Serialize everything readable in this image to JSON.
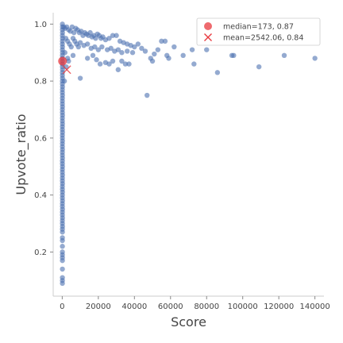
{
  "chart_data": {
    "type": "scatter",
    "xlabel": "Score",
    "ylabel": "Upvote_ratio",
    "xlim": [
      -5000,
      145000
    ],
    "ylim": [
      0.045,
      1.04
    ],
    "xticks": [
      0,
      20000,
      40000,
      60000,
      80000,
      100000,
      120000,
      140000
    ],
    "xtick_labels": [
      "0",
      "20000",
      "40000",
      "60000",
      "80000",
      "100000",
      "120000",
      "140000"
    ],
    "yticks": [
      0.2,
      0.4,
      0.6,
      0.8,
      1.0
    ],
    "ytick_labels": [
      "0.2",
      "0.4",
      "0.6",
      "0.8",
      "1.0"
    ],
    "grid": false,
    "legend_position": "top-right",
    "colors": {
      "points": "#4c72b0",
      "median": "#e8383d",
      "mean": "#e8383d"
    },
    "legend": [
      {
        "label": "median=173, 0.87",
        "marker": "circle"
      },
      {
        "label": "mean=2542.06, 0.84",
        "marker": "x"
      }
    ],
    "median": {
      "x": 173,
      "y": 0.87
    },
    "mean": {
      "x": 2542.06,
      "y": 0.84
    },
    "series": [
      {
        "points": [
          [
            100,
            1.0
          ],
          [
            100,
            0.99
          ],
          [
            100,
            0.98
          ],
          [
            150,
            0.97
          ],
          [
            100,
            0.96
          ],
          [
            150,
            0.95
          ],
          [
            100,
            0.94
          ],
          [
            100,
            0.93
          ],
          [
            150,
            0.92
          ],
          [
            100,
            0.91
          ],
          [
            150,
            0.9
          ],
          [
            100,
            0.89
          ],
          [
            100,
            0.88
          ],
          [
            150,
            0.87
          ],
          [
            100,
            0.86
          ],
          [
            100,
            0.85
          ],
          [
            150,
            0.84
          ],
          [
            100,
            0.83
          ],
          [
            100,
            0.82
          ],
          [
            150,
            0.81
          ],
          [
            100,
            0.8
          ],
          [
            100,
            0.79
          ],
          [
            150,
            0.78
          ],
          [
            100,
            0.77
          ],
          [
            100,
            0.76
          ],
          [
            150,
            0.75
          ],
          [
            100,
            0.74
          ],
          [
            100,
            0.73
          ],
          [
            100,
            0.72
          ],
          [
            150,
            0.71
          ],
          [
            100,
            0.7
          ],
          [
            100,
            0.69
          ],
          [
            150,
            0.68
          ],
          [
            100,
            0.67
          ],
          [
            100,
            0.66
          ],
          [
            150,
            0.65
          ],
          [
            100,
            0.64
          ],
          [
            100,
            0.63
          ],
          [
            150,
            0.62
          ],
          [
            100,
            0.61
          ],
          [
            100,
            0.6
          ],
          [
            150,
            0.59
          ],
          [
            100,
            0.58
          ],
          [
            100,
            0.57
          ],
          [
            150,
            0.56
          ],
          [
            100,
            0.55
          ],
          [
            100,
            0.54
          ],
          [
            150,
            0.53
          ],
          [
            100,
            0.52
          ],
          [
            100,
            0.51
          ],
          [
            150,
            0.5
          ],
          [
            100,
            0.49
          ],
          [
            100,
            0.48
          ],
          [
            150,
            0.47
          ],
          [
            100,
            0.46
          ],
          [
            100,
            0.45
          ],
          [
            150,
            0.44
          ],
          [
            100,
            0.43
          ],
          [
            100,
            0.42
          ],
          [
            150,
            0.41
          ],
          [
            100,
            0.4
          ],
          [
            100,
            0.39
          ],
          [
            150,
            0.38
          ],
          [
            100,
            0.37
          ],
          [
            100,
            0.36
          ],
          [
            150,
            0.35
          ],
          [
            100,
            0.34
          ],
          [
            100,
            0.33
          ],
          [
            150,
            0.32
          ],
          [
            100,
            0.31
          ],
          [
            100,
            0.3
          ],
          [
            150,
            0.29
          ],
          [
            100,
            0.28
          ],
          [
            100,
            0.27
          ],
          [
            100,
            0.25
          ],
          [
            100,
            0.24
          ],
          [
            100,
            0.22
          ],
          [
            100,
            0.2
          ],
          [
            100,
            0.19
          ],
          [
            100,
            0.18
          ],
          [
            100,
            0.17
          ],
          [
            100,
            0.14
          ],
          [
            100,
            0.11
          ],
          [
            100,
            0.1
          ],
          [
            100,
            0.09
          ],
          [
            800,
            0.99
          ],
          [
            1500,
            0.985
          ],
          [
            2500,
            0.99
          ],
          [
            3500,
            0.98
          ],
          [
            4500,
            0.975
          ],
          [
            5500,
            0.99
          ],
          [
            6500,
            0.97
          ],
          [
            7500,
            0.985
          ],
          [
            8500,
            0.98
          ],
          [
            9500,
            0.97
          ],
          [
            10500,
            0.975
          ],
          [
            11500,
            0.96
          ],
          [
            12500,
            0.97
          ],
          [
            13500,
            0.965
          ],
          [
            14500,
            0.96
          ],
          [
            15500,
            0.97
          ],
          [
            16500,
            0.955
          ],
          [
            17500,
            0.96
          ],
          [
            18500,
            0.95
          ],
          [
            19500,
            0.965
          ],
          [
            20500,
            0.96
          ],
          [
            21500,
            0.95
          ],
          [
            22500,
            0.955
          ],
          [
            24000,
            0.945
          ],
          [
            26000,
            0.95
          ],
          [
            28000,
            0.96
          ],
          [
            30000,
            0.96
          ],
          [
            32000,
            0.94
          ],
          [
            34000,
            0.935
          ],
          [
            36000,
            0.93
          ],
          [
            38000,
            0.925
          ],
          [
            40000,
            0.92
          ],
          [
            42000,
            0.93
          ],
          [
            44000,
            0.915
          ],
          [
            2000,
            0.95
          ],
          [
            3000,
            0.94
          ],
          [
            4000,
            0.93
          ],
          [
            5000,
            0.92
          ],
          [
            6000,
            0.95
          ],
          [
            7000,
            0.94
          ],
          [
            8000,
            0.93
          ],
          [
            9000,
            0.92
          ],
          [
            10000,
            0.935
          ],
          [
            12000,
            0.925
          ],
          [
            14000,
            0.93
          ],
          [
            16000,
            0.915
          ],
          [
            18000,
            0.92
          ],
          [
            20000,
            0.91
          ],
          [
            22000,
            0.92
          ],
          [
            25000,
            0.91
          ],
          [
            27000,
            0.915
          ],
          [
            29000,
            0.905
          ],
          [
            31000,
            0.91
          ],
          [
            33000,
            0.9
          ],
          [
            36000,
            0.905
          ],
          [
            39000,
            0.9
          ],
          [
            1500,
            0.9
          ],
          [
            3000,
            0.88
          ],
          [
            6000,
            0.89
          ],
          [
            10000,
            0.81
          ],
          [
            14000,
            0.88
          ],
          [
            17000,
            0.89
          ],
          [
            19000,
            0.875
          ],
          [
            21000,
            0.86
          ],
          [
            24000,
            0.865
          ],
          [
            26000,
            0.86
          ],
          [
            28000,
            0.87
          ],
          [
            31000,
            0.84
          ],
          [
            33000,
            0.87
          ],
          [
            35000,
            0.86
          ],
          [
            37000,
            0.86
          ],
          [
            1200,
            0.8
          ],
          [
            2200,
            0.85
          ],
          [
            3500,
            0.87
          ],
          [
            47000,
            0.75
          ],
          [
            49000,
            0.88
          ],
          [
            51000,
            0.895
          ],
          [
            53000,
            0.91
          ],
          [
            55000,
            0.94
          ],
          [
            57000,
            0.94
          ],
          [
            58000,
            0.89
          ],
          [
            59000,
            0.88
          ],
          [
            62000,
            0.92
          ],
          [
            67000,
            0.89
          ],
          [
            72000,
            0.91
          ],
          [
            73000,
            0.86
          ],
          [
            80000,
            0.91
          ],
          [
            86000,
            0.83
          ],
          [
            94000,
            0.89
          ],
          [
            95000,
            0.89
          ],
          [
            109000,
            0.85
          ],
          [
            123000,
            0.89
          ],
          [
            140000,
            0.88
          ],
          [
            46000,
            0.905
          ],
          [
            50000,
            0.87
          ]
        ]
      }
    ]
  }
}
